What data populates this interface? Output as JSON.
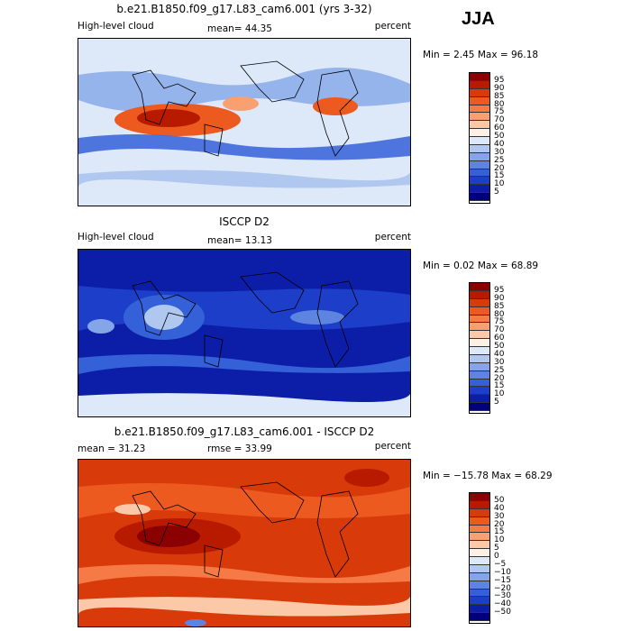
{
  "season": "JJA",
  "panels": [
    {
      "title": "b.e21.B1850.f09_g17.L83_cam6.001 (yrs 3-32)",
      "left_label": "High-level cloud",
      "center_label": "mean=  44.35",
      "right_label": "percent",
      "minmax": "Min =   2.45 Max =  96.18",
      "colorbar": {
        "labels": [
          "95",
          "90",
          "85",
          "80",
          "75",
          "70",
          "60",
          "50",
          "40",
          "30",
          "25",
          "20",
          "15",
          "10",
          "5"
        ],
        "colors": [
          "#8b0000",
          "#b81a00",
          "#d93a0a",
          "#ec5a20",
          "#f57a45",
          "#f9a070",
          "#fcc9a8",
          "#fdf0e4",
          "#dde8f8",
          "#b0c8f0",
          "#84a6e8",
          "#5c84e0",
          "#3460d8",
          "#1c3ec8",
          "#0c1ea8",
          "#00007f"
        ]
      }
    },
    {
      "title": "ISCCP D2",
      "left_label": "High-level cloud",
      "center_label": "mean=  13.13",
      "right_label": "percent",
      "minmax": "Min =   0.02 Max =  68.89",
      "colorbar": {
        "labels": [
          "95",
          "90",
          "85",
          "80",
          "75",
          "70",
          "60",
          "50",
          "40",
          "30",
          "25",
          "20",
          "15",
          "10",
          "5"
        ],
        "colors": [
          "#8b0000",
          "#b81a00",
          "#d93a0a",
          "#ec5a20",
          "#f57a45",
          "#f9a070",
          "#fcc9a8",
          "#fdf0e4",
          "#dde8f8",
          "#b0c8f0",
          "#84a6e8",
          "#5c84e0",
          "#3460d8",
          "#1c3ec8",
          "#0c1ea8",
          "#00007f"
        ]
      }
    },
    {
      "title": "b.e21.B1850.f09_g17.L83_cam6.001 - ISCCP D2",
      "left_label": "mean =  31.23",
      "center_label": "rmse =  33.99",
      "right_label": "percent",
      "minmax": "Min = −15.78 Max =  68.29",
      "colorbar": {
        "labels": [
          "50",
          "40",
          "30",
          "20",
          "15",
          "10",
          "5",
          "0",
          "−5",
          "−10",
          "−15",
          "−20",
          "−30",
          "−40",
          "−50"
        ],
        "colors": [
          "#8b0000",
          "#b81a00",
          "#d93a0a",
          "#ec5a20",
          "#f57a45",
          "#f9a070",
          "#fcc9a8",
          "#fdf0e4",
          "#dde8f8",
          "#b0c8f0",
          "#84a6e8",
          "#5c84e0",
          "#3460d8",
          "#1c3ec8",
          "#0c1ea8",
          "#00007f"
        ]
      }
    }
  ]
}
